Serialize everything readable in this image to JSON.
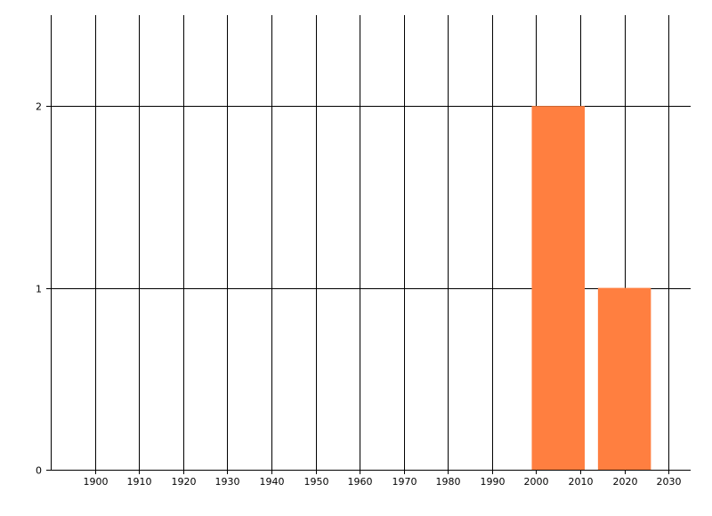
{
  "chart_data": {
    "type": "bar",
    "title": "",
    "xlabel": "",
    "ylabel": "",
    "x": [
      2005,
      2020
    ],
    "values": [
      2,
      1
    ],
    "bar_width_years": 12,
    "xlim": [
      1890,
      2035
    ],
    "ylim": [
      0,
      2.5
    ],
    "x_ticks": [
      1900,
      1910,
      1920,
      1930,
      1940,
      1950,
      1960,
      1970,
      1980,
      1990,
      2000,
      2010,
      2020,
      2030
    ],
    "y_ticks": [
      0,
      1,
      2
    ],
    "grid": true,
    "legend": "none",
    "colors": {
      "bar": "#FF7F40",
      "grid": "#000000"
    }
  }
}
